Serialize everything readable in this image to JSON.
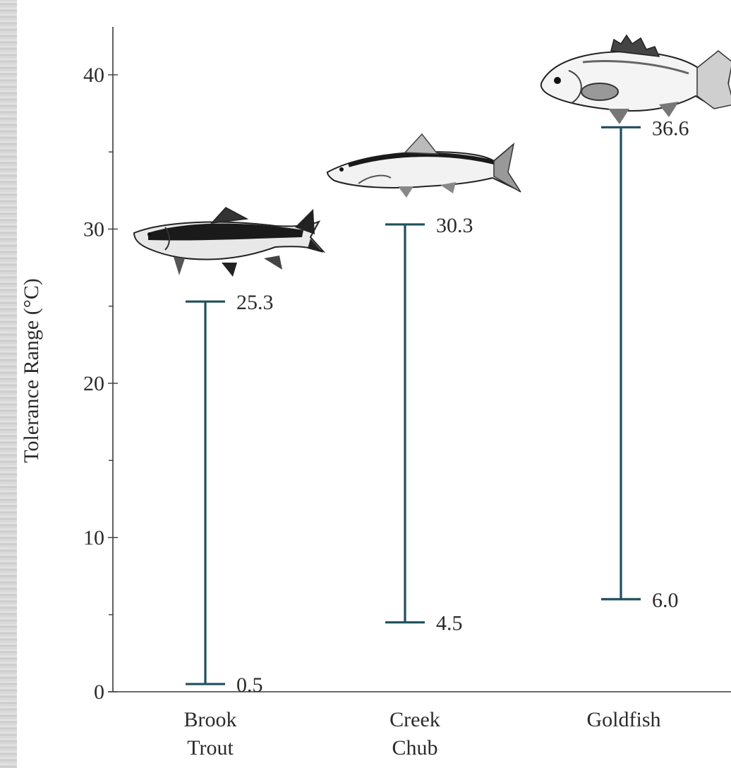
{
  "chart_data": {
    "type": "range",
    "title": "",
    "xlabel": "",
    "ylabel": "Tolerance Range (°C)",
    "ylim": [
      0,
      40
    ],
    "y_ticks_major": [
      0,
      10,
      20,
      30,
      40
    ],
    "y_ticks_minor": [
      5,
      15,
      25,
      35
    ],
    "categories": [
      {
        "lines": [
          "Brook",
          "Trout"
        ],
        "icon": "brook-trout-fish-illustration"
      },
      {
        "lines": [
          "Creek",
          "Chub"
        ],
        "icon": "creek-chub-fish-illustration"
      },
      {
        "lines": [
          "Goldfish"
        ],
        "icon": "goldfish-illustration"
      }
    ],
    "ranges": [
      {
        "low": 0.5,
        "high": 25.3,
        "low_label": "0.5",
        "high_label": "25.3"
      },
      {
        "low": 4.5,
        "high": 30.3,
        "low_label": "4.5",
        "high_label": "30.3"
      },
      {
        "low": 6.0,
        "high": 36.6,
        "low_label": "6.0",
        "high_label": "36.6"
      }
    ],
    "grid": false,
    "bar_color": "#1f4f5e"
  }
}
